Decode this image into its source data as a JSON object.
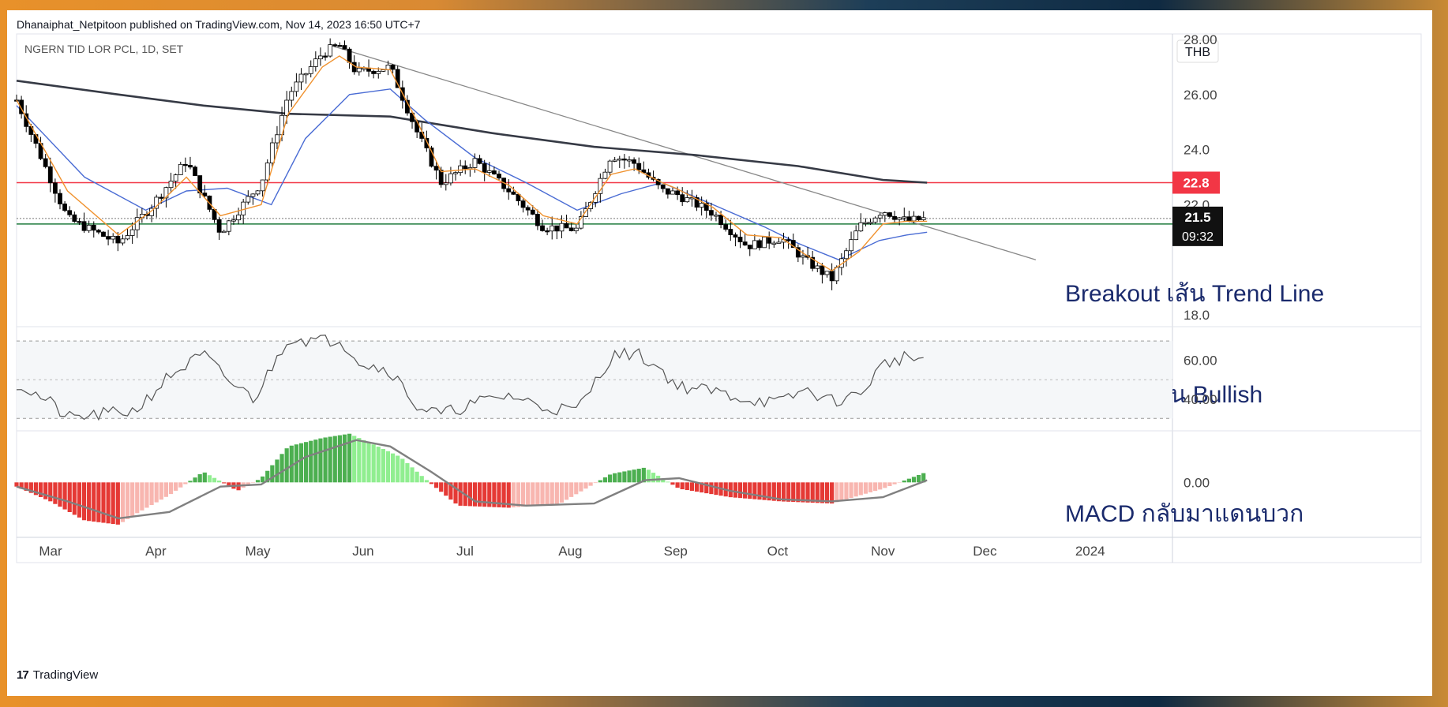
{
  "header": {
    "publisher": "Dhanaiphat_Netpitoon published on TradingView.com, Nov 14, 2023 16:50 UTC+7"
  },
  "footer": {
    "brand": "TradingView",
    "logo_text": "17"
  },
  "chart_data": {
    "type": "candlestick",
    "symbol_label": "NGERN TID LOR PCL, 1D, SET",
    "currency": "THB",
    "x_ticks": [
      "Mar",
      "Apr",
      "May",
      "Jun",
      "Jul",
      "Aug",
      "Sep",
      "Oct",
      "Nov",
      "Dec",
      "2024"
    ],
    "x_tick_days": [
      0,
      31,
      61,
      92,
      122,
      153,
      184,
      214,
      245,
      275,
      306
    ],
    "x_range_days": [
      -10,
      330
    ],
    "price_axis": {
      "ticks": [
        "18.0",
        "22.0",
        "24.0",
        "26.00",
        "28.00"
      ],
      "tick_values": [
        18,
        22,
        24,
        26,
        28
      ],
      "range": [
        17.6,
        28.2
      ]
    },
    "current_price": {
      "value": 21.5,
      "label": "21.5",
      "countdown": "09:32"
    },
    "resistance": {
      "value": 22.8,
      "label": "22.8",
      "color": "#f23645"
    },
    "support": {
      "value": 21.3,
      "label": "21.3",
      "color": "#1e7a3c"
    },
    "trend_line": {
      "start": {
        "day": 82,
        "price": 27.8
      },
      "end": {
        "day": 290,
        "price": 20.0
      }
    },
    "annotations": {
      "price": "Breakout เส้น Trend Line",
      "rsi": "RSI ยืนโซน Bullish",
      "macd": "MACD กลับมาแดนบวก"
    },
    "price_series": {
      "days": [
        -10,
        5,
        20,
        30,
        40,
        50,
        62,
        70,
        80,
        85,
        90,
        100,
        108,
        115,
        125,
        135,
        145,
        155,
        165,
        172,
        180,
        184,
        195,
        205,
        215,
        222,
        230,
        238,
        245,
        252,
        258
      ],
      "close": [
        25.8,
        21.5,
        20.6,
        22.0,
        23.6,
        21.0,
        22.8,
        26.0,
        27.5,
        27.8,
        26.8,
        27.0,
        24.6,
        22.8,
        23.6,
        22.5,
        21.2,
        21.1,
        23.8,
        23.5,
        22.5,
        22.4,
        21.7,
        20.5,
        20.8,
        20.0,
        19.3,
        21.2,
        21.8,
        21.4,
        21.5
      ]
    },
    "ma_fast": {
      "days": [
        -10,
        5,
        20,
        30,
        40,
        50,
        62,
        70,
        80,
        85,
        90,
        100,
        108,
        115,
        125,
        135,
        145,
        155,
        165,
        172,
        180,
        184,
        195,
        205,
        215,
        222,
        230,
        238,
        245,
        252,
        258
      ],
      "values": [
        25.8,
        22.5,
        20.9,
        21.8,
        23.0,
        21.6,
        22.0,
        25.3,
        27.0,
        27.4,
        27.0,
        26.9,
        25.0,
        23.2,
        23.3,
        22.7,
        21.6,
        21.3,
        23.1,
        23.3,
        22.8,
        22.6,
        21.9,
        20.9,
        20.8,
        20.2,
        19.6,
        20.3,
        21.3,
        21.4,
        21.4
      ]
    },
    "ma_mid": {
      "days": [
        -10,
        10,
        28,
        40,
        52,
        65,
        75,
        88,
        100,
        110,
        125,
        140,
        155,
        168,
        180,
        195,
        210,
        220,
        232,
        244,
        252,
        258
      ],
      "values": [
        25.6,
        23.0,
        21.8,
        22.5,
        22.6,
        22.0,
        24.4,
        26.0,
        26.2,
        25.1,
        23.7,
        22.8,
        21.8,
        22.4,
        22.8,
        22.0,
        21.2,
        20.6,
        20.0,
        20.7,
        20.9,
        21.0
      ]
    },
    "ma_slow": {
      "days": [
        -10,
        20,
        45,
        70,
        100,
        130,
        160,
        190,
        220,
        245,
        258
      ],
      "values": [
        26.5,
        26.0,
        25.6,
        25.3,
        25.2,
        24.6,
        24.1,
        23.8,
        23.4,
        22.9,
        22.8
      ]
    },
    "rsi": {
      "ticks": [
        "40.00",
        "60.00"
      ],
      "tick_values": [
        40,
        60
      ],
      "range": [
        24,
        77
      ],
      "upper_band": 70,
      "lower_band": 30,
      "days": [
        -10,
        0,
        5,
        15,
        25,
        35,
        45,
        52,
        60,
        70,
        78,
        85,
        92,
        100,
        108,
        115,
        125,
        135,
        145,
        155,
        165,
        172,
        180,
        184,
        195,
        205,
        215,
        222,
        230,
        238,
        245,
        252,
        258
      ],
      "values": [
        48,
        38,
        30,
        32,
        34,
        52,
        63,
        50,
        40,
        72,
        70,
        71,
        58,
        55,
        36,
        32,
        38,
        42,
        36,
        34,
        62,
        64,
        55,
        47,
        44,
        40,
        38,
        45,
        39,
        42,
        58,
        62,
        60
      ]
    },
    "macd": {
      "ticks": [
        "0.00"
      ],
      "tick_values": [
        0
      ],
      "range": [
        -1.3,
        1.2
      ],
      "hist_days": [
        -10,
        0,
        10,
        20,
        25,
        35,
        45,
        55,
        62,
        70,
        80,
        88,
        95,
        103,
        110,
        120,
        135,
        150,
        165,
        175,
        185,
        200,
        215,
        230,
        245,
        258
      ],
      "hist_values": [
        -0.1,
        -0.45,
        -0.9,
        -1.0,
        -0.75,
        -0.3,
        0.25,
        -0.2,
        0.1,
        0.85,
        1.05,
        1.15,
        0.9,
        0.6,
        0.1,
        -0.55,
        -0.6,
        -0.5,
        0.2,
        0.35,
        -0.15,
        -0.35,
        -0.45,
        -0.5,
        -0.15,
        0.25
      ],
      "signal_days": [
        -10,
        5,
        20,
        35,
        50,
        62,
        75,
        90,
        100,
        112,
        125,
        140,
        160,
        175,
        185,
        200,
        215,
        230,
        245,
        258
      ],
      "signal_values": [
        -0.1,
        -0.45,
        -0.85,
        -0.7,
        -0.1,
        -0.05,
        0.6,
        1.0,
        0.85,
        0.25,
        -0.45,
        -0.55,
        -0.5,
        0.05,
        0.1,
        -0.2,
        -0.4,
        -0.45,
        -0.35,
        0.05
      ]
    },
    "colors": {
      "up_candle": "#ffffff",
      "down_candle": "#000000",
      "ma_fast": "#f0922f",
      "ma_mid": "#4a6cd4",
      "ma_slow": "#363a45",
      "rsi_line": "#555555",
      "macd_signal": "#808080",
      "hist_pos_strong": "#4caf50",
      "hist_pos_weak": "#90ee90",
      "hist_neg_strong": "#e53935",
      "hist_neg_weak": "#f8b6b0",
      "annotation_text": "#1a2a6c"
    }
  }
}
